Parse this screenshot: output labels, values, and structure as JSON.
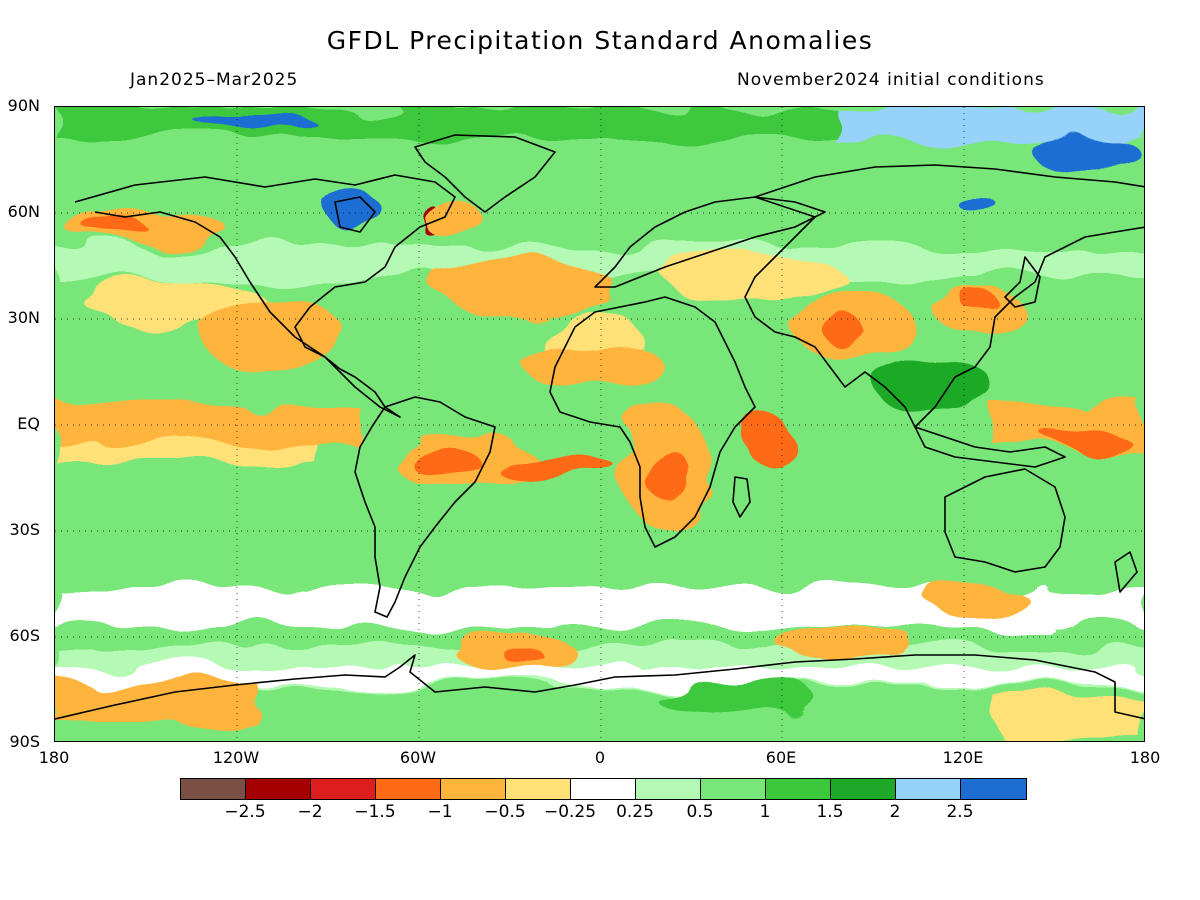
{
  "title": "GFDL Precipitation Standard Anomalies",
  "subtitle_left": "Jan2025–Mar2025",
  "subtitle_right": "November2024 initial conditions",
  "map": {
    "type": "heatmap",
    "projection": "equirectangular",
    "lon_range": [
      -180,
      180
    ],
    "lat_range": [
      -90,
      90
    ],
    "grid": "dotted",
    "y_ticks": [
      "90N",
      "60N",
      "30N",
      "EQ",
      "30S",
      "60S",
      "90S"
    ],
    "x_ticks": [
      "180",
      "120W",
      "60W",
      "0",
      "60E",
      "120E",
      "180"
    ],
    "background_color": "#ffffff",
    "coastline_color": "#000000"
  },
  "colorbar": {
    "colors": [
      "#7a5045",
      "#a50000",
      "#dc1e1e",
      "#ff6a14",
      "#ffb43c",
      "#ffe178",
      "#ffffff",
      "#b4fab4",
      "#78e678",
      "#3cc83c",
      "#1eaa28",
      "#96d2fa",
      "#1e6ed2"
    ],
    "labels": [
      "−2.5",
      "−2",
      "−1.5",
      "−1",
      "−0.5",
      "−0.25",
      "0.25",
      "0.5",
      "1",
      "1.5",
      "2",
      "2.5"
    ]
  }
}
